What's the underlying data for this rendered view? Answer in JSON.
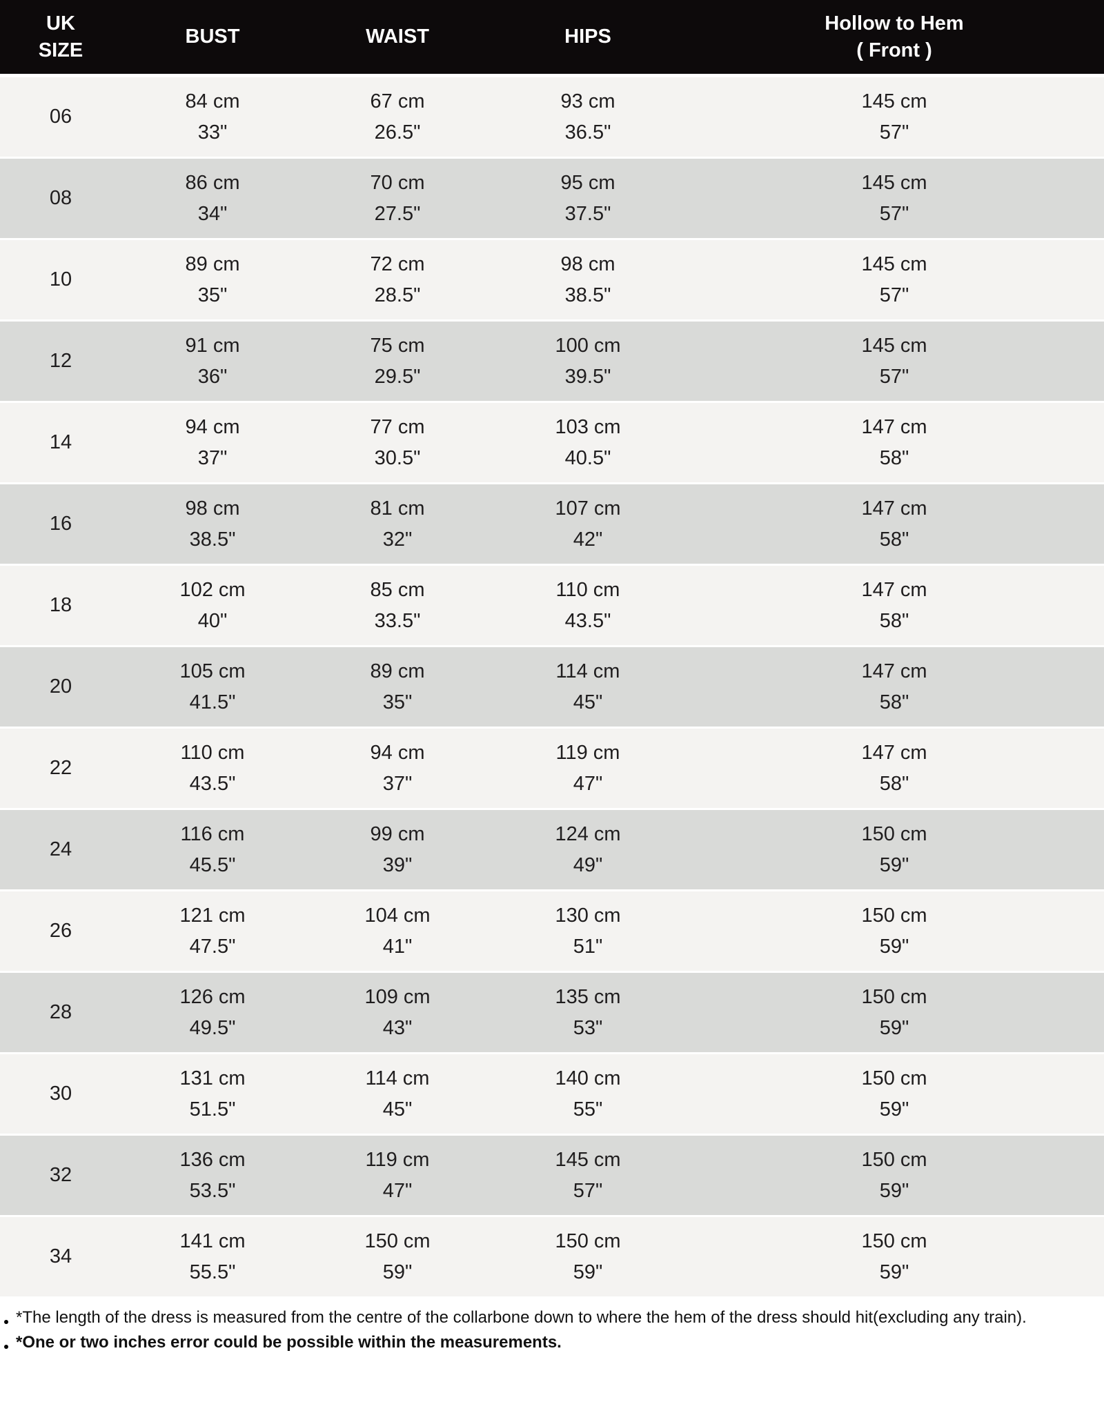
{
  "table": {
    "columns": [
      {
        "id": "size",
        "label_lines": [
          "UK",
          "SIZE"
        ]
      },
      {
        "id": "bust",
        "label_lines": [
          "BUST"
        ]
      },
      {
        "id": "waist",
        "label_lines": [
          "WAIST"
        ]
      },
      {
        "id": "hips",
        "label_lines": [
          "HIPS"
        ]
      },
      {
        "id": "hollow",
        "label_lines": [
          "Hollow to Hem",
          "( Front )"
        ]
      }
    ],
    "rows": [
      {
        "size": "06",
        "bust": [
          "84 cm",
          "33\""
        ],
        "waist": [
          "67 cm",
          "26.5\""
        ],
        "hips": [
          "93 cm",
          "36.5\""
        ],
        "hollow": [
          "145 cm",
          "57\""
        ]
      },
      {
        "size": "08",
        "bust": [
          "86 cm",
          "34\""
        ],
        "waist": [
          "70 cm",
          "27.5\""
        ],
        "hips": [
          "95 cm",
          "37.5\""
        ],
        "hollow": [
          "145 cm",
          "57\""
        ]
      },
      {
        "size": "10",
        "bust": [
          "89 cm",
          "35\""
        ],
        "waist": [
          "72 cm",
          "28.5\""
        ],
        "hips": [
          "98 cm",
          "38.5\""
        ],
        "hollow": [
          "145 cm",
          "57\""
        ]
      },
      {
        "size": "12",
        "bust": [
          "91 cm",
          "36\""
        ],
        "waist": [
          "75 cm",
          "29.5\""
        ],
        "hips": [
          "100 cm",
          "39.5\""
        ],
        "hollow": [
          "145 cm",
          "57\""
        ]
      },
      {
        "size": "14",
        "bust": [
          "94 cm",
          "37\""
        ],
        "waist": [
          "77 cm",
          "30.5\""
        ],
        "hips": [
          "103 cm",
          "40.5\""
        ],
        "hollow": [
          "147 cm",
          "58\""
        ]
      },
      {
        "size": "16",
        "bust": [
          "98 cm",
          "38.5\""
        ],
        "waist": [
          "81 cm",
          "32\""
        ],
        "hips": [
          "107 cm",
          "42\""
        ],
        "hollow": [
          "147 cm",
          "58\""
        ]
      },
      {
        "size": "18",
        "bust": [
          "102 cm",
          "40\""
        ],
        "waist": [
          "85 cm",
          "33.5\""
        ],
        "hips": [
          "110 cm",
          "43.5\""
        ],
        "hollow": [
          "147 cm",
          "58\""
        ]
      },
      {
        "size": "20",
        "bust": [
          "105 cm",
          "41.5\""
        ],
        "waist": [
          "89 cm",
          "35\""
        ],
        "hips": [
          "114 cm",
          "45\""
        ],
        "hollow": [
          "147 cm",
          "58\""
        ]
      },
      {
        "size": "22",
        "bust": [
          "110 cm",
          "43.5\""
        ],
        "waist": [
          "94 cm",
          "37\""
        ],
        "hips": [
          "119 cm",
          "47\""
        ],
        "hollow": [
          "147 cm",
          "58\""
        ]
      },
      {
        "size": "24",
        "bust": [
          "116 cm",
          "45.5\""
        ],
        "waist": [
          "99 cm",
          "39\""
        ],
        "hips": [
          "124 cm",
          "49\""
        ],
        "hollow": [
          "150 cm",
          "59\""
        ]
      },
      {
        "size": "26",
        "bust": [
          "121 cm",
          "47.5\""
        ],
        "waist": [
          "104 cm",
          "41\""
        ],
        "hips": [
          "130 cm",
          "51\""
        ],
        "hollow": [
          "150 cm",
          "59\""
        ]
      },
      {
        "size": "28",
        "bust": [
          "126 cm",
          "49.5\""
        ],
        "waist": [
          "109 cm",
          "43\""
        ],
        "hips": [
          "135 cm",
          "53\""
        ],
        "hollow": [
          "150 cm",
          "59\""
        ]
      },
      {
        "size": "30",
        "bust": [
          "131 cm",
          "51.5\""
        ],
        "waist": [
          "114 cm",
          "45\""
        ],
        "hips": [
          "140 cm",
          "55\""
        ],
        "hollow": [
          "150 cm",
          "59\""
        ]
      },
      {
        "size": "32",
        "bust": [
          "136 cm",
          "53.5\""
        ],
        "waist": [
          "119 cm",
          "47\""
        ],
        "hips": [
          "145 cm",
          "57\""
        ],
        "hollow": [
          "150 cm",
          "59\""
        ]
      },
      {
        "size": "34",
        "bust": [
          "141 cm",
          "55.5\""
        ],
        "waist": [
          "150 cm",
          "59\""
        ],
        "hips": [
          "150 cm",
          "59\""
        ],
        "hollow": [
          "150 cm",
          "59\""
        ]
      }
    ]
  },
  "footnotes": [
    {
      "text": "*The length of the dress is measured from the centre of the collarbone down to where the hem of the dress should hit(excluding any train).",
      "bold": false
    },
    {
      "text": "*One or two inches error could be possible within the measurements.",
      "bold": true
    }
  ],
  "colors": {
    "header_bg": "#0d0a0b",
    "header_text": "#ffffff",
    "row_light": "#f4f3f1",
    "row_dark": "#d9dad8",
    "text": "#1f1d1e",
    "page_bg": "#ffffff"
  }
}
